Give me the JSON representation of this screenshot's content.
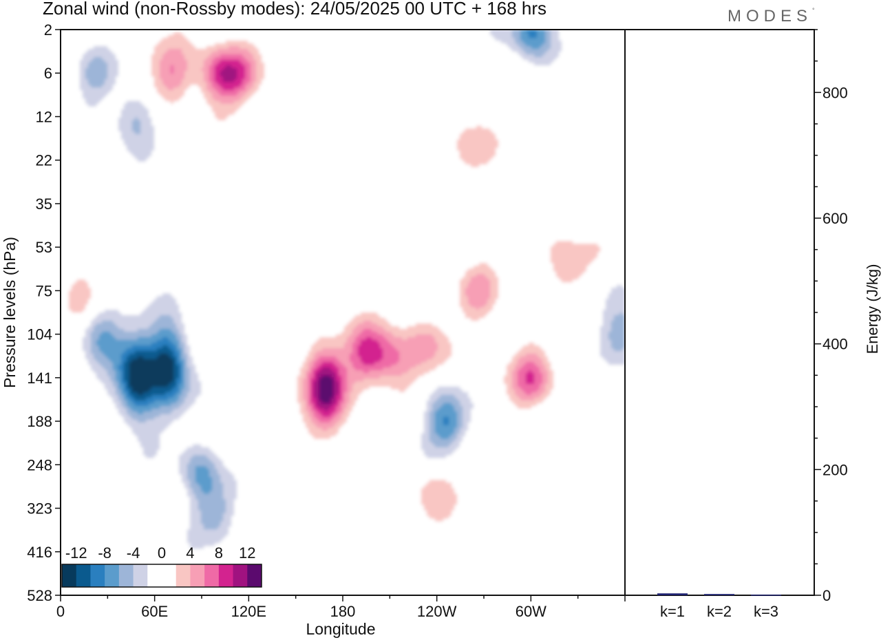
{
  "title": "Zonal wind (non-Rossby modes):  24/05/2025  00 UTC  + 168 hrs",
  "logo": {
    "text": "MODES",
    "mark": "°"
  },
  "colors": {
    "colormap": [
      "#073a5c",
      "#0a5a8e",
      "#2a7fbf",
      "#5b9ccc",
      "#9db5d8",
      "#cfd2e6",
      "#ffffff",
      "#ffffff",
      "#f9c6c3",
      "#f79fb5",
      "#ef6aa6",
      "#d3238f",
      "#a01280",
      "#5b0a6e"
    ],
    "bar": "#1e2270",
    "frame": "#111111"
  },
  "chart_data": [
    {
      "type": "heatmap",
      "title": "Zonal wind (non-Rossby modes):  24/05/2025  00 UTC  + 168 hrs",
      "xlabel": "Longitude",
      "ylabel": "Pressure levels (hPa)",
      "x_ticks": [
        "0",
        "60E",
        "120E",
        "180",
        "120W",
        "60W"
      ],
      "x_range": [
        0,
        360
      ],
      "y_ticks": [
        "2",
        "6",
        "12",
        "22",
        "35",
        "53",
        "75",
        "104",
        "141",
        "188",
        "248",
        "323",
        "416",
        "528"
      ],
      "colorbar": {
        "labels": [
          "-12",
          "-8",
          "-4",
          "0",
          "4",
          "8",
          "12"
        ],
        "levels": [
          -14,
          -12,
          -10,
          -8,
          -6,
          -4,
          -2,
          0,
          2,
          4,
          6,
          8,
          10,
          12,
          14
        ]
      },
      "features": [
        {
          "lon": 48,
          "level": 141,
          "value": -14
        },
        {
          "lon": 68,
          "level": 130,
          "value": -13
        },
        {
          "lon": 25,
          "level": 104,
          "value": -7
        },
        {
          "lon": 88,
          "level": 260,
          "value": -6
        },
        {
          "lon": 98,
          "level": 330,
          "value": -5
        },
        {
          "lon": 245,
          "level": 188,
          "value": -8
        },
        {
          "lon": 168,
          "level": 150,
          "value": 13
        },
        {
          "lon": 195,
          "level": 120,
          "value": 8
        },
        {
          "lon": 212,
          "level": 125,
          "value": 6
        },
        {
          "lon": 233,
          "level": 110,
          "value": 4
        },
        {
          "lon": 300,
          "level": 141,
          "value": 7
        },
        {
          "lon": 100,
          "level": 6,
          "value": 8
        },
        {
          "lon": 70,
          "level": 6,
          "value": 6
        },
        {
          "lon": 115,
          "level": 6,
          "value": 5
        },
        {
          "lon": 10,
          "level": 75,
          "value": 4
        },
        {
          "lon": 45,
          "level": 12,
          "value": -5
        },
        {
          "lon": 20,
          "level": 6,
          "value": -4
        },
        {
          "lon": 300,
          "level": 2,
          "value": -9
        },
        {
          "lon": 358,
          "level": 104,
          "value": -6
        },
        {
          "lon": 265,
          "level": 20,
          "value": 3
        },
        {
          "lon": 265,
          "level": 75,
          "value": 4
        },
        {
          "lon": 320,
          "level": 60,
          "value": 4
        },
        {
          "lon": 235,
          "level": 290,
          "value": 3
        }
      ]
    },
    {
      "type": "bar",
      "categories": [
        "k=1",
        "k=2",
        "k=3"
      ],
      "values": [
        3,
        2,
        1
      ],
      "ylabel": "Energy (J/kg)",
      "ylim": [
        0,
        900
      ],
      "y_ticks": [
        0,
        200,
        400,
        600,
        800
      ]
    }
  ]
}
